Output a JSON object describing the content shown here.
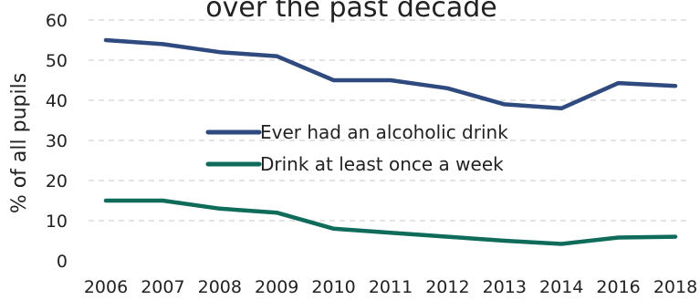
{
  "chart_data": {
    "type": "line",
    "title": "over the past decade",
    "xlabel": "",
    "ylabel": "% of all pupils",
    "ylim": [
      0,
      60
    ],
    "yticks": [
      0,
      10,
      20,
      30,
      40,
      50,
      60
    ],
    "grid": true,
    "legend_position": "center",
    "categories": [
      "2006",
      "2007",
      "2008",
      "2009",
      "2010",
      "2011",
      "2012",
      "2013",
      "2014",
      "2016",
      "2018"
    ],
    "series": [
      {
        "name": "Ever had an alcoholic drink",
        "color": "#2e4a7f",
        "values": [
          55,
          54,
          52,
          51,
          45,
          45,
          43,
          39,
          38,
          44.3,
          43.6
        ]
      },
      {
        "name": "Drink at least once a week",
        "color": "#0f6b5a",
        "values": [
          15,
          15,
          13,
          12,
          8,
          7,
          6,
          5,
          4.2,
          5.8,
          6
        ]
      }
    ]
  }
}
